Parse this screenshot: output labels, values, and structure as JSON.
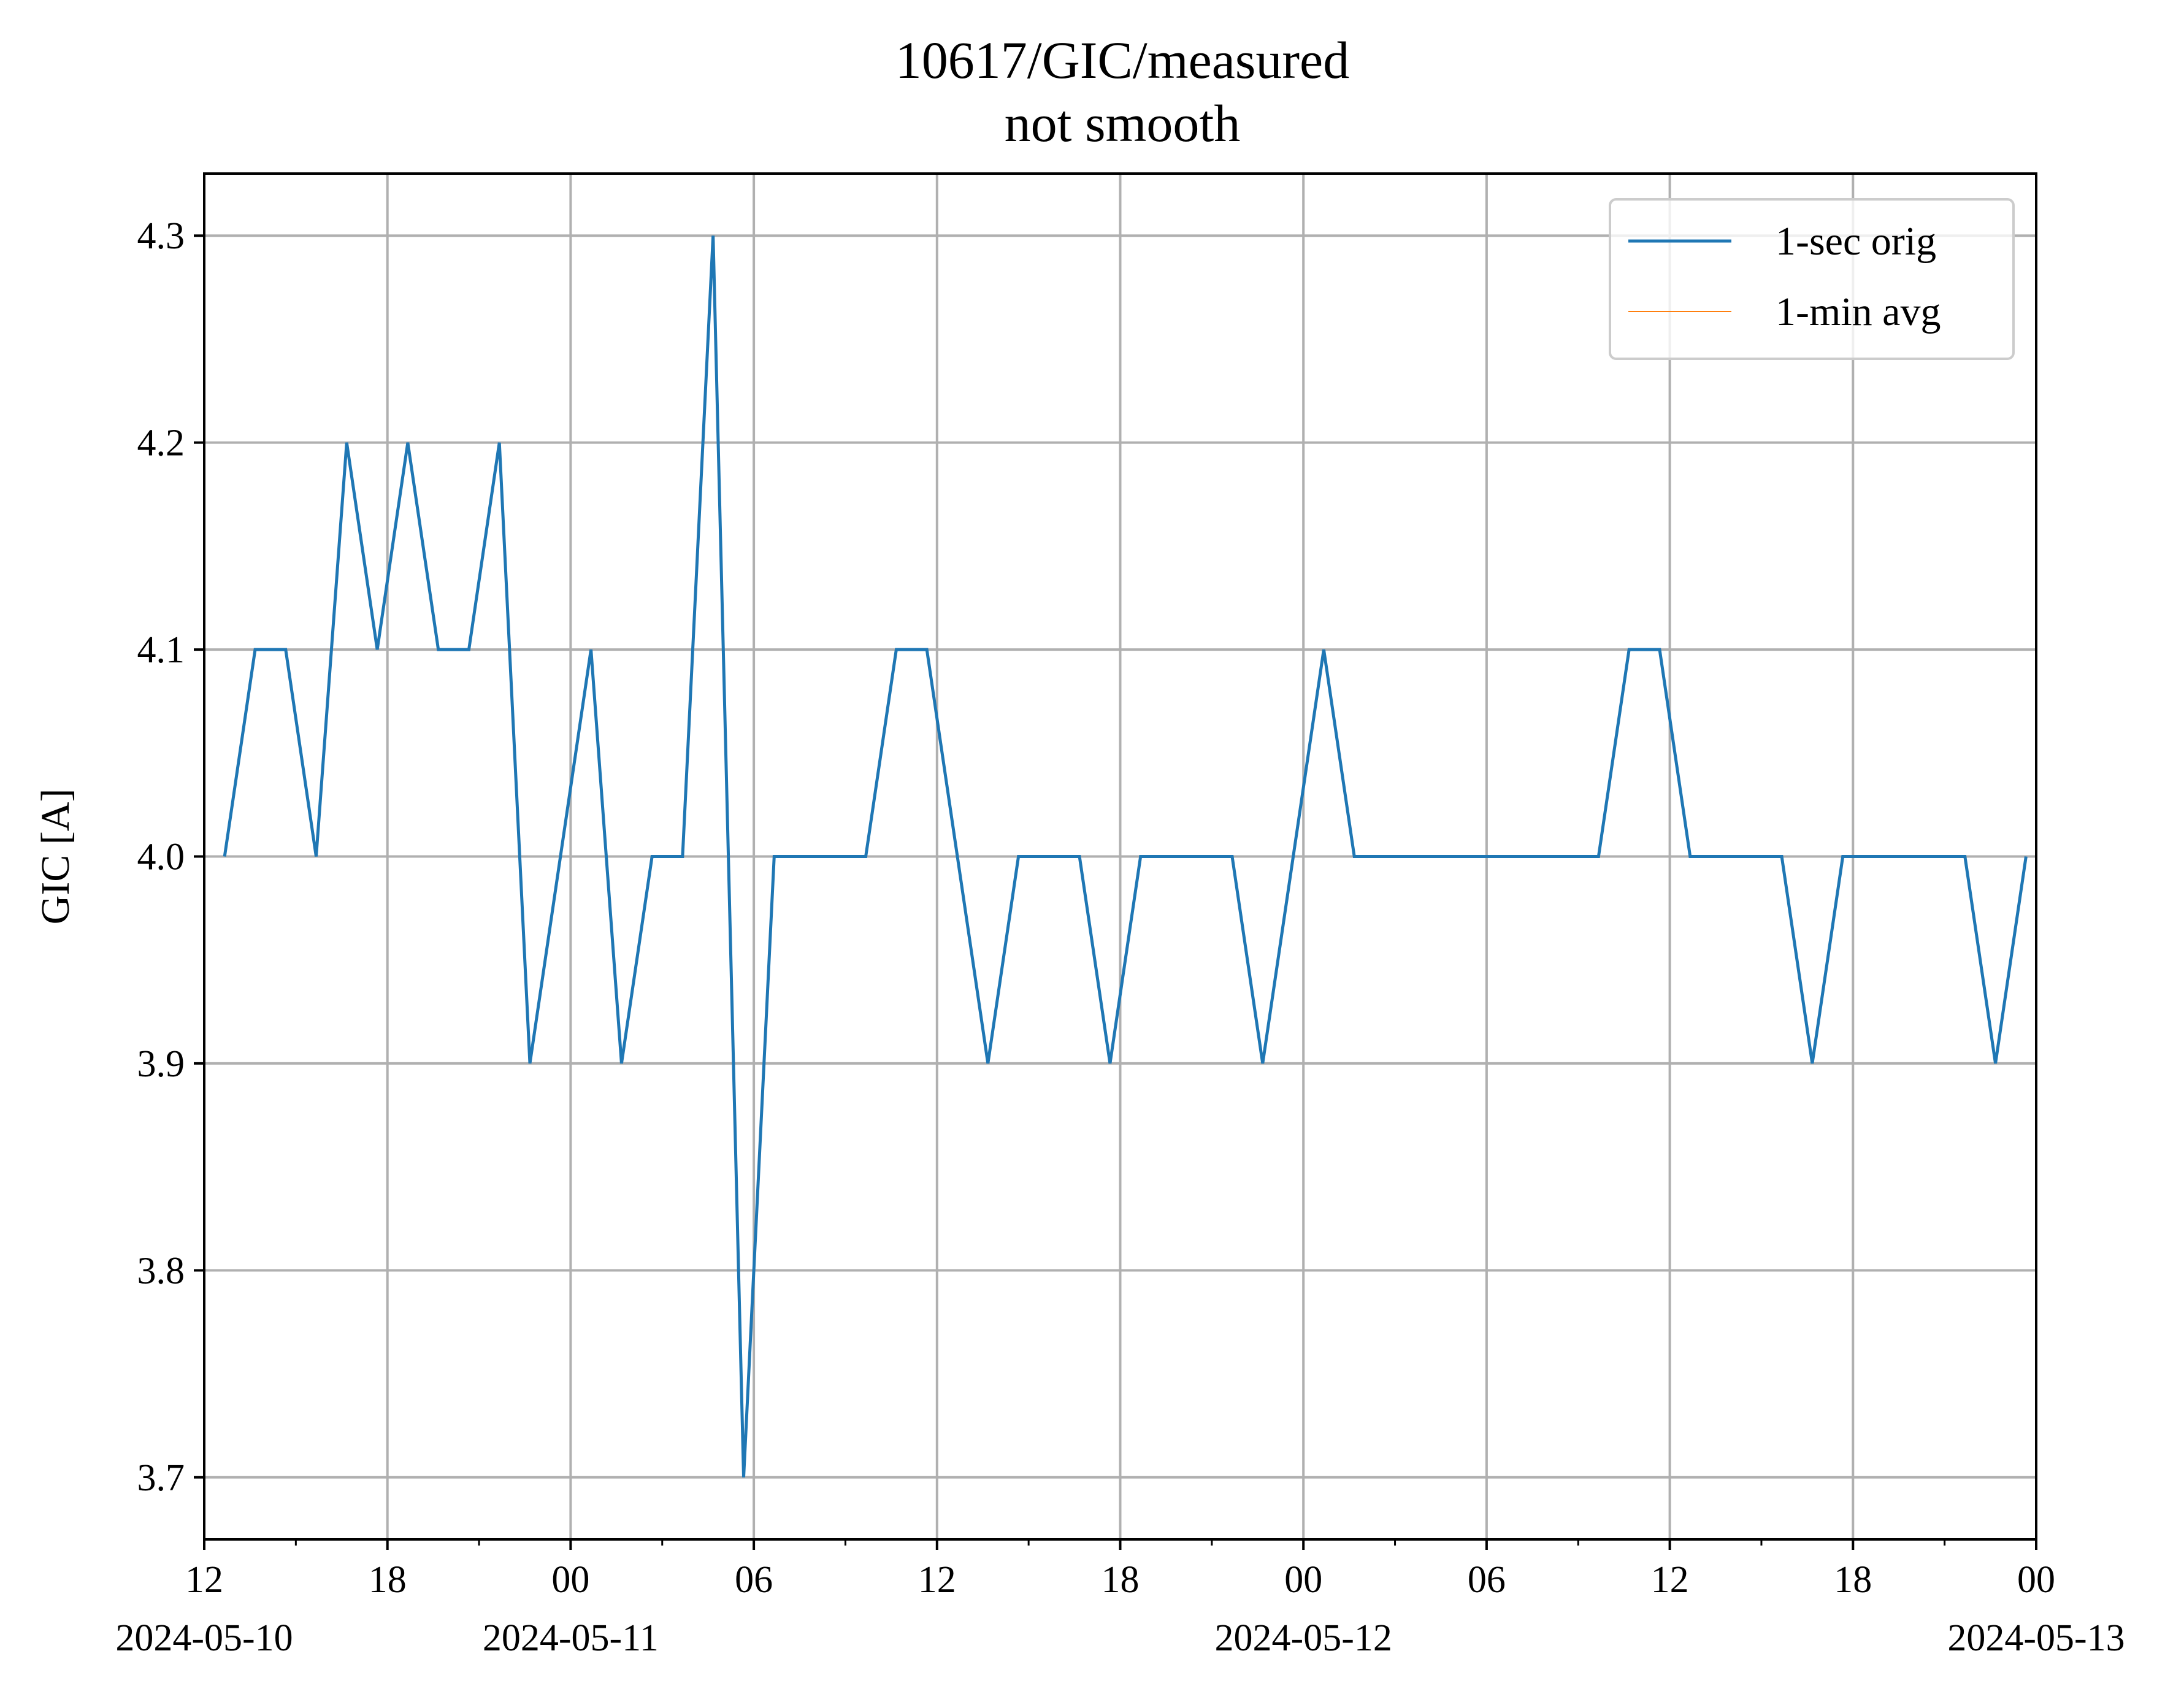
{
  "chart_data": {
    "type": "line",
    "title": "10617/GIC/measured",
    "subtitle": "not smooth",
    "xlabel": "",
    "ylabel": "GIC [A]",
    "x_axis_type": "datetime",
    "xlim": [
      "2024-05-10 12:00",
      "2024-05-13 00:00"
    ],
    "ylim": [
      3.67,
      4.33
    ],
    "grid": true,
    "legend_position": "upper-right",
    "x_ticks": [
      {
        "at": "2024-05-10 12:00",
        "label": "12",
        "date": "2024-05-10"
      },
      {
        "at": "2024-05-10 18:00",
        "label": "18",
        "date": ""
      },
      {
        "at": "2024-05-11 00:00",
        "label": "00",
        "date": "2024-05-11"
      },
      {
        "at": "2024-05-11 06:00",
        "label": "06",
        "date": ""
      },
      {
        "at": "2024-05-11 12:00",
        "label": "12",
        "date": ""
      },
      {
        "at": "2024-05-11 18:00",
        "label": "18",
        "date": ""
      },
      {
        "at": "2024-05-12 00:00",
        "label": "00",
        "date": "2024-05-12"
      },
      {
        "at": "2024-05-12 06:00",
        "label": "06",
        "date": ""
      },
      {
        "at": "2024-05-12 12:00",
        "label": "12",
        "date": ""
      },
      {
        "at": "2024-05-12 18:00",
        "label": "18",
        "date": ""
      },
      {
        "at": "2024-05-13 00:00",
        "label": "00",
        "date": "2024-05-13"
      }
    ],
    "x_minor_ticks": [
      "2024-05-10 15:00",
      "2024-05-10 21:00",
      "2024-05-11 03:00",
      "2024-05-11 09:00",
      "2024-05-11 15:00",
      "2024-05-11 21:00",
      "2024-05-12 03:00",
      "2024-05-12 09:00",
      "2024-05-12 15:00",
      "2024-05-12 21:00"
    ],
    "y_ticks": [
      3.7,
      3.8,
      3.9,
      4.0,
      4.1,
      4.2,
      4.3
    ],
    "y_tick_labels": [
      "3.7",
      "3.8",
      "3.9",
      "4.0",
      "4.1",
      "4.2",
      "4.3"
    ],
    "series": [
      {
        "name": "1-sec orig",
        "color": "#1f77b4",
        "x": [
          "2024-05-10 12:40",
          "2024-05-10 13:40",
          "2024-05-10 14:40",
          "2024-05-10 15:40",
          "2024-05-10 16:40",
          "2024-05-10 17:40",
          "2024-05-10 18:40",
          "2024-05-10 19:40",
          "2024-05-10 20:40",
          "2024-05-10 21:40",
          "2024-05-10 22:40",
          "2024-05-10 23:40",
          "2024-05-11 00:40",
          "2024-05-11 01:40",
          "2024-05-11 02:40",
          "2024-05-11 03:40",
          "2024-05-11 04:40",
          "2024-05-11 05:40",
          "2024-05-11 06:40",
          "2024-05-11 07:40",
          "2024-05-11 08:40",
          "2024-05-11 09:40",
          "2024-05-11 10:40",
          "2024-05-11 11:40",
          "2024-05-11 12:40",
          "2024-05-11 13:40",
          "2024-05-11 14:40",
          "2024-05-11 15:40",
          "2024-05-11 16:40",
          "2024-05-11 17:40",
          "2024-05-11 18:40",
          "2024-05-11 19:40",
          "2024-05-11 20:40",
          "2024-05-11 21:40",
          "2024-05-11 22:40",
          "2024-05-11 23:40",
          "2024-05-12 00:40",
          "2024-05-12 01:40",
          "2024-05-12 02:40",
          "2024-05-12 03:40",
          "2024-05-12 04:40",
          "2024-05-12 05:40",
          "2024-05-12 06:40",
          "2024-05-12 07:40",
          "2024-05-12 08:40",
          "2024-05-12 09:40",
          "2024-05-12 10:40",
          "2024-05-12 11:40",
          "2024-05-12 12:40",
          "2024-05-12 13:40",
          "2024-05-12 14:40",
          "2024-05-12 15:40",
          "2024-05-12 16:40",
          "2024-05-12 17:40",
          "2024-05-12 18:40",
          "2024-05-12 19:40",
          "2024-05-12 20:40",
          "2024-05-12 21:40",
          "2024-05-12 22:40",
          "2024-05-12 23:40"
        ],
        "values": [
          4.0,
          4.1,
          4.1,
          4.0,
          4.2,
          4.1,
          4.2,
          4.1,
          4.1,
          4.2,
          3.9,
          4.0,
          4.1,
          3.9,
          4.0,
          4.0,
          4.3,
          3.7,
          4.0,
          4.0,
          4.0,
          4.0,
          4.1,
          4.1,
          4.0,
          3.9,
          4.0,
          4.0,
          4.0,
          3.9,
          4.0,
          4.0,
          4.0,
          4.0,
          3.9,
          4.0,
          4.1,
          4.0,
          4.0,
          4.0,
          4.0,
          4.0,
          4.0,
          4.0,
          4.0,
          4.0,
          4.1,
          4.1,
          4.0,
          4.0,
          4.0,
          4.0,
          3.9,
          4.0,
          4.0,
          4.0,
          4.0,
          4.0,
          3.9,
          4.0
        ]
      },
      {
        "name": "1-min avg",
        "color": "#ff7f0e",
        "x": [],
        "values": []
      }
    ]
  }
}
